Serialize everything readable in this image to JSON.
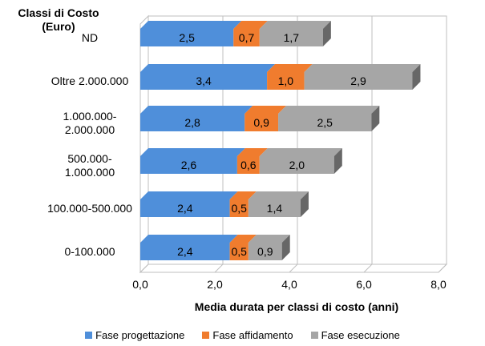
{
  "chart_data": {
    "type": "bar",
    "orientation": "horizontal",
    "stacked": true,
    "ylabel": "Classi di Costo (Euro)",
    "xlabel": "Media durata per classi di costo (anni)",
    "categories": [
      "ND",
      "Oltre 2.000.000",
      "1.000.000-\n2.000.000",
      "500.000-\n1.000.000",
      "100.000-500.000",
      "0-100.000"
    ],
    "series": [
      {
        "name": "Fase progettazione",
        "color": "#4F8FDA",
        "values": [
          2.5,
          3.4,
          2.8,
          2.6,
          2.4,
          2.4
        ],
        "labels": [
          "2,5",
          "3,4",
          "2,8",
          "2,6",
          "2,4",
          "2,4"
        ]
      },
      {
        "name": "Fase affidamento",
        "color": "#F07C2E",
        "values": [
          0.7,
          1.0,
          0.9,
          0.6,
          0.5,
          0.5
        ],
        "labels": [
          "0,7",
          "1,0",
          "0,9",
          "0,6",
          "0,5",
          "0,5"
        ]
      },
      {
        "name": "Fase  esecuzione",
        "color": "#A6A6A6",
        "values": [
          1.7,
          2.9,
          2.5,
          2.0,
          1.4,
          0.9
        ],
        "labels": [
          "1,7",
          "2,9",
          "2,5",
          "2,0",
          "1,4",
          "0,9"
        ]
      }
    ],
    "xticks": [
      "0,0",
      "2,0",
      "4,0",
      "6,0",
      "8,0"
    ],
    "xlim": [
      0,
      8
    ],
    "grid": true,
    "legend_position": "bottom"
  }
}
